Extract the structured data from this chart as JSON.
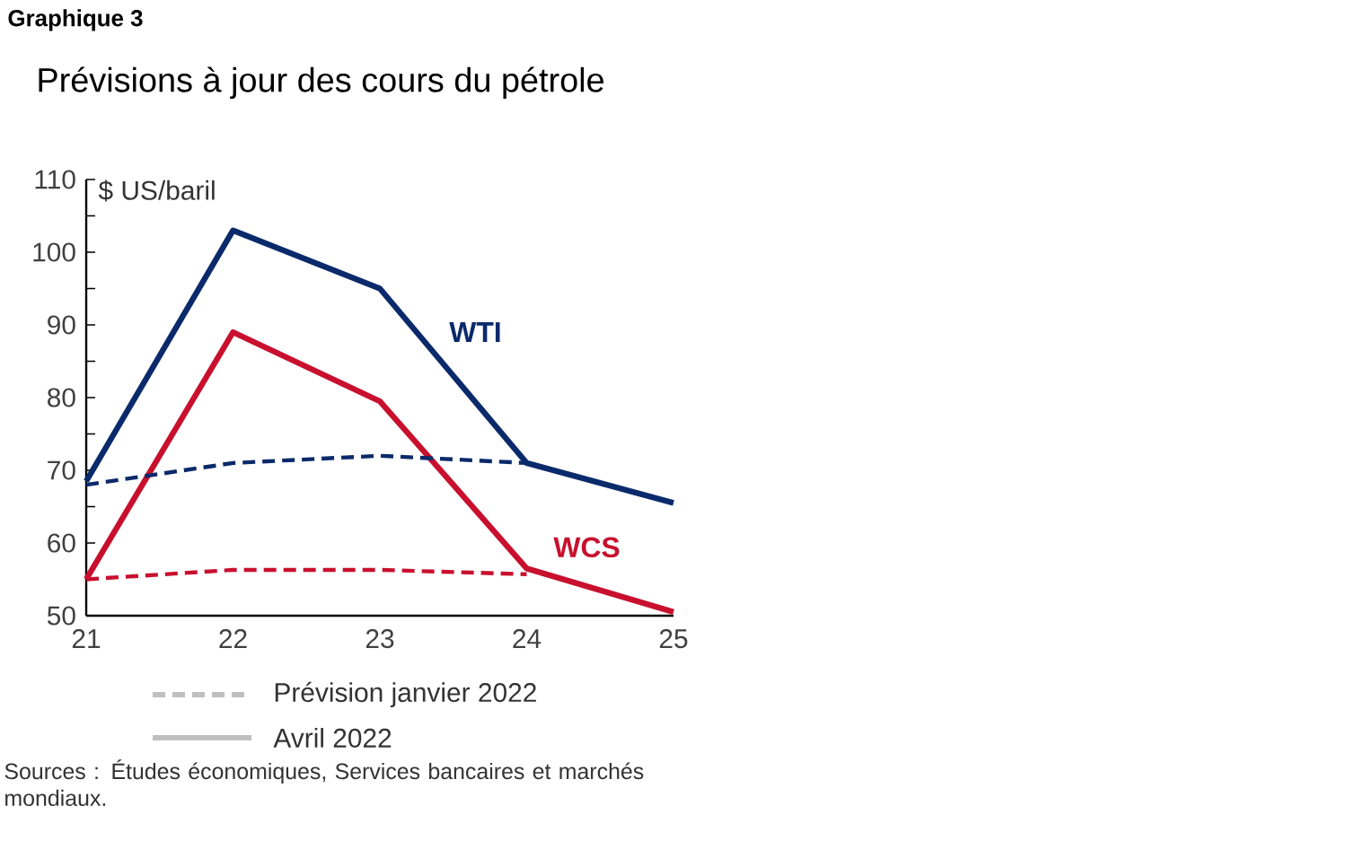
{
  "chart_data": {
    "type": "line",
    "title": "Graphique 3",
    "subtitle": "Prévisions à jour des cours du pétrole",
    "ylabel": "$ US/baril",
    "categories": [
      "21",
      "22",
      "23",
      "24",
      "25"
    ],
    "ylim": [
      50,
      110
    ],
    "yticks": [
      50,
      60,
      70,
      80,
      90,
      100,
      110
    ],
    "series": [
      {
        "name": "WTI",
        "color": "#0b2a6b",
        "line_style": "solid",
        "values": [
          68.5,
          103,
          95,
          71,
          65.5
        ]
      },
      {
        "name": "WCS",
        "color": "#c8102e",
        "line_style": "solid",
        "values": [
          55,
          89,
          79.5,
          56.5,
          50.5
        ]
      },
      {
        "color": "#0b2a6b",
        "line_style": "dashed",
        "values": [
          68,
          71,
          72,
          71,
          null
        ]
      },
      {
        "color": "#c8102e",
        "line_style": "dashed",
        "values": [
          55,
          56.3,
          56.3,
          55.7,
          null
        ]
      }
    ],
    "legend": "bottom",
    "annotations": [
      "Prévision janvier 2022",
      "Avril 2022",
      "Sources : Études économiques, Services bancaires et marchés mondiaux."
    ]
  }
}
